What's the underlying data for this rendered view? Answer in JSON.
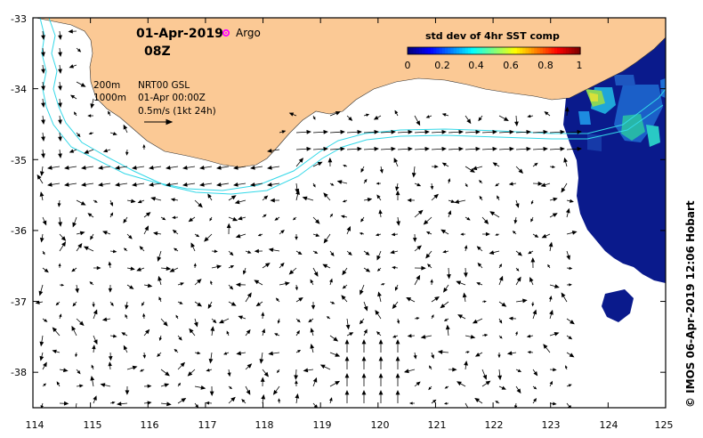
{
  "map": {
    "date": "01-Apr-2019",
    "hour": "08Z",
    "argo_label": "Argo",
    "contour_labels": [
      "200m",
      "1000m"
    ],
    "product": "NRT00 GSL",
    "product_time": "01-Apr 00:00Z",
    "vector_scale": "0.5m/s (1kt 24h)",
    "credit": "© IMOS 06-Apr-2019 12:06 Hobart",
    "x_ticks": [
      "114",
      "115",
      "116",
      "117",
      "118",
      "119",
      "120",
      "121",
      "122",
      "123",
      "124",
      "125"
    ],
    "y_ticks": [
      "-33",
      "-34",
      "-35",
      "-36",
      "-37",
      "-38"
    ]
  },
  "colorbar": {
    "title": "std dev of 4hr SST comp",
    "ticks": [
      "0",
      "0.2",
      "0.4",
      "0.6",
      "0.8",
      "1"
    ],
    "colors": [
      "#00007f",
      "#0000ff",
      "#007fff",
      "#00ffff",
      "#7fff7f",
      "#ffff00",
      "#ff7f00",
      "#ff0000",
      "#7f0000"
    ]
  },
  "colors": {
    "land": "#fbc995",
    "contour": "#33d8e8",
    "argo": "#ff00ff",
    "sst_low": "#0a1a8c"
  },
  "chart_data": {
    "type": "map",
    "lon_range": [
      114,
      125
    ],
    "lat_range": [
      -38.5,
      -33
    ],
    "current_vectors_note": "surface current arrows, scale 0.5 m/s"
  }
}
